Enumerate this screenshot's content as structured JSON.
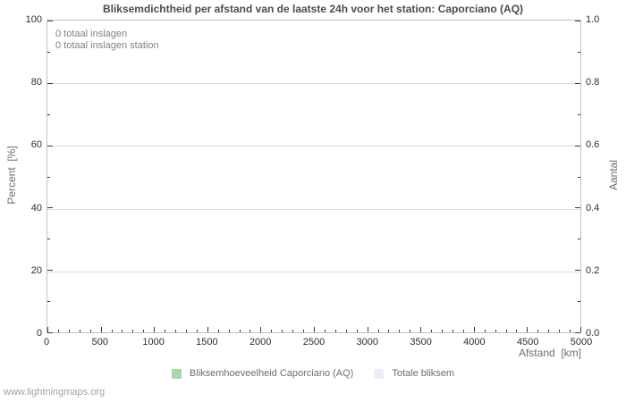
{
  "chart_data": {
    "type": "bar",
    "title": "Bliksemdichtheid per afstand van de laatste 24h voor het station: Caporciano (AQ)",
    "annotations": [
      "0 totaal inslagen",
      "0 totaal inslagen station"
    ],
    "totals": {
      "totaal_inslagen": 0,
      "totaal_inslagen_station": 0
    },
    "x_axis": {
      "label": "Afstand  [km]",
      "min": 0,
      "max": 5000,
      "major_ticks": [
        0,
        500,
        1000,
        1500,
        2000,
        2500,
        3000,
        3500,
        4000,
        4500,
        5000
      ],
      "minor_step": 100
    },
    "y_axis_left": {
      "label": "Percent  [%]",
      "min": 0,
      "max": 100,
      "major_ticks": [
        0,
        20,
        40,
        60,
        80,
        100
      ],
      "minor_step": 10
    },
    "y_axis_right": {
      "label": "Aantal",
      "min": 0,
      "max": 1,
      "major_ticks": [
        0,
        0.2,
        0.4,
        0.6,
        0.8,
        1
      ],
      "major_tick_labels": [
        "0.0",
        "0.2",
        "0.4",
        "0.6",
        "0.8",
        "1.0"
      ],
      "minor_step": 0.1
    },
    "grid": "horizontal gridlines at left-axis major ticks only",
    "legend_position": "bottom-center",
    "series": [
      {
        "name": "Bliksemhoeveelheid Caporciano (AQ)",
        "color": "#aad6aa",
        "values": []
      },
      {
        "name": "Totale bliksem",
        "color": "#ededfa",
        "values": []
      }
    ]
  },
  "footer": {
    "watermark": "www.lightningmaps.org"
  },
  "colors": {
    "title": "#4b4b4b",
    "tick_label": "#2d2d2d",
    "axis_title": "#6e6e6e",
    "annotation": "#828282",
    "gridline": "#dcdcdc",
    "frame": "#c2c2c2",
    "legend_text": "#6e6e6e",
    "watermark": "#a2a2a2",
    "background": "#ffffff"
  }
}
